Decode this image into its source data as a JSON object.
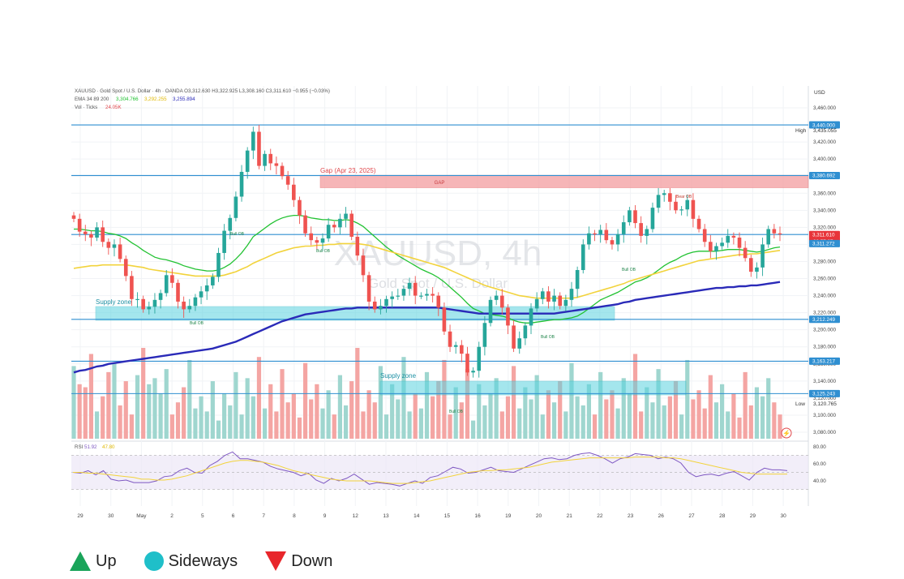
{
  "header": {
    "line1": "XAUUSD · Gold Spot / U.S. Dollar · 4h · OANDA  O3,312.630  H3,322.925  L3,308.160  C3,311.610  −0.955 (−0.03%)",
    "ema_label": "EMA 34 89 200",
    "ema34": "3,304.766",
    "ema89": "3,292.255",
    "ema200": "3,255.894",
    "vol_label": "Vol · Ticks",
    "vol_value": "24.05K",
    "rsi_label": "RSI",
    "rsi_value": "51.92",
    "rsi_ma": "47.80"
  },
  "watermark": {
    "symbol": "XAUUSD, 4h",
    "name": "Gold Spot / U.S. Dollar"
  },
  "currency": "USD",
  "colors": {
    "up": "#26a69a",
    "down": "#ef5350",
    "ema34": "#22c232",
    "ema89": "#f2d33c",
    "ema200": "#2a2ab8",
    "level": "#2f8fd1",
    "zone": "#5ad3e0",
    "gap": "#f49da0",
    "rsi": "#7e57c2"
  },
  "labels": {
    "gap_title": "Gap (Apr 23, 2025)",
    "gap_box": "GAP",
    "supply_zone_1": "Supply zone",
    "supply_zone_2": "Supply zone",
    "bear_ob": "Bear OB",
    "bull_ob": "Bull OB",
    "high_label": "High",
    "high_value": "3,435.055",
    "low_label": "Low",
    "low_value": "3,120.765",
    "countdown": "02:57:37"
  },
  "price_tags": [
    {
      "text": "3,440.000",
      "price": 3440.0
    },
    {
      "text": "3,380.692",
      "price": 3380.692
    },
    {
      "text": "3,311.610",
      "price": 3311.61
    },
    {
      "text": "3,311.272",
      "price": 3301.0
    },
    {
      "text": "3,212.249",
      "price": 3212.249
    },
    {
      "text": "3,163.217",
      "price": 3163.217
    },
    {
      "text": "3,125.243",
      "price": 3125.243
    }
  ],
  "legend": [
    {
      "label": "Up",
      "shape": "triangle-up"
    },
    {
      "label": "Sideways",
      "shape": "circle"
    },
    {
      "label": "Down",
      "shape": "triangle-down"
    }
  ],
  "chart_data": {
    "type": "line",
    "title": "XAUUSD · Gold Spot / U.S. Dollar · 4h · OANDA",
    "y_axis": {
      "min": 3080,
      "max": 3460,
      "step": 20,
      "ticks": [
        "3,460.000",
        "3,440.000",
        "3,420.000",
        "3,400.000",
        "3,380.000",
        "3,360.000",
        "3,340.000",
        "3,320.000",
        "3,300.000",
        "3,280.000",
        "3,260.000",
        "3,240.000",
        "3,220.000",
        "3,200.000",
        "3,180.000",
        "3,160.000",
        "3,140.000",
        "3,120.000",
        "3,100.000",
        "3,080.000"
      ]
    },
    "x_labels": [
      "29",
      "30",
      "May",
      "2",
      "5",
      "6",
      "7",
      "8",
      "9",
      "12",
      "13",
      "14",
      "15",
      "16",
      "19",
      "20",
      "21",
      "22",
      "23",
      "26",
      "27",
      "28",
      "29",
      "30"
    ],
    "levels": [
      3440.0,
      3380.692,
      3311.61,
      3212.249,
      3163.217,
      3125.243
    ],
    "gap_zone": [
      3374,
      3381
    ],
    "close": [
      3330,
      3315,
      3312,
      3308,
      3320,
      3303,
      3296,
      3300,
      3283,
      3263,
      3236,
      3236,
      3224,
      3227,
      3235,
      3243,
      3264,
      3255,
      3233,
      3224,
      3228,
      3238,
      3245,
      3252,
      3262,
      3290,
      3316,
      3331,
      3356,
      3385,
      3410,
      3432,
      3392,
      3406,
      3395,
      3392,
      3380,
      3370,
      3352,
      3334,
      3313,
      3305,
      3302,
      3307,
      3323,
      3320,
      3330,
      3336,
      3309,
      3287,
      3264,
      3233,
      3224,
      3228,
      3236,
      3239,
      3240,
      3248,
      3255,
      3240,
      3240,
      3242,
      3240,
      3226,
      3198,
      3180,
      3182,
      3172,
      3150,
      3152,
      3180,
      3208,
      3235,
      3240,
      3226,
      3205,
      3178,
      3190,
      3205,
      3225,
      3236,
      3245,
      3233,
      3240,
      3228,
      3235,
      3248,
      3270,
      3300,
      3313,
      3312,
      3317,
      3305,
      3300,
      3312,
      3326,
      3340,
      3325,
      3310,
      3318,
      3343,
      3358,
      3360,
      3350,
      3340,
      3341,
      3352,
      3330,
      3318,
      3303,
      3292,
      3298,
      3302,
      3310,
      3308,
      3296,
      3284,
      3268,
      3273,
      3300,
      3318,
      3313,
      3312
    ],
    "series": [
      {
        "name": "EMA 34",
        "values": [
          3318,
          3318,
          3317,
          3316,
          3316,
          3315,
          3313,
          3312,
          3310,
          3307,
          3302,
          3298,
          3293,
          3289,
          3285,
          3283,
          3282,
          3280,
          3278,
          3275,
          3273,
          3271,
          3270,
          3269,
          3269,
          3270,
          3273,
          3277,
          3283,
          3290,
          3299,
          3309,
          3314,
          3319,
          3324,
          3328,
          3331,
          3333,
          3334,
          3334,
          3333,
          3331,
          3330,
          3329,
          3329,
          3328,
          3328,
          3329,
          3328,
          3325,
          3321,
          3315,
          3309,
          3303,
          3297,
          3292,
          3287,
          3283,
          3279,
          3275,
          3271,
          3268,
          3265,
          3261,
          3256,
          3250,
          3244,
          3238,
          3231,
          3225,
          3222,
          3219,
          3218,
          3217,
          3216,
          3214,
          3211,
          3209,
          3208,
          3208,
          3209,
          3210,
          3211,
          3212,
          3212,
          3213,
          3214,
          3216,
          3220,
          3225,
          3230,
          3235,
          3238,
          3241,
          3244,
          3248,
          3252,
          3256,
          3258,
          3261,
          3265,
          3270,
          3275,
          3279,
          3282,
          3286,
          3289,
          3291,
          3292,
          3292,
          3292,
          3292,
          3293,
          3294,
          3294,
          3294,
          3293,
          3292,
          3291,
          3292,
          3294,
          3296,
          3297
        ]
      },
      {
        "name": "EMA 89",
        "values": [
          3272,
          3273,
          3274,
          3275,
          3275,
          3276,
          3276,
          3276,
          3276,
          3276,
          3275,
          3274,
          3273,
          3271,
          3270,
          3269,
          3268,
          3267,
          3266,
          3265,
          3264,
          3263,
          3263,
          3263,
          3263,
          3263,
          3264,
          3266,
          3268,
          3271,
          3274,
          3278,
          3281,
          3284,
          3287,
          3290,
          3292,
          3294,
          3296,
          3297,
          3298,
          3298,
          3299,
          3299,
          3300,
          3300,
          3301,
          3301,
          3301,
          3301,
          3300,
          3299,
          3297,
          3295,
          3293,
          3291,
          3289,
          3287,
          3285,
          3283,
          3281,
          3279,
          3277,
          3275,
          3273,
          3270,
          3267,
          3264,
          3261,
          3258,
          3255,
          3252,
          3250,
          3248,
          3246,
          3244,
          3242,
          3240,
          3239,
          3238,
          3237,
          3237,
          3237,
          3237,
          3237,
          3237,
          3237,
          3238,
          3240,
          3242,
          3244,
          3246,
          3248,
          3250,
          3252,
          3254,
          3257,
          3259,
          3261,
          3263,
          3265,
          3267,
          3269,
          3271,
          3273,
          3275,
          3277,
          3279,
          3281,
          3282,
          3283,
          3284,
          3285,
          3286,
          3287,
          3288,
          3288,
          3289,
          3289,
          3290,
          3291,
          3292,
          3293
        ]
      },
      {
        "name": "EMA 200",
        "values": [
          3150,
          3152,
          3153,
          3155,
          3157,
          3158,
          3160,
          3161,
          3162,
          3163,
          3164,
          3165,
          3166,
          3167,
          3168,
          3169,
          3170,
          3171,
          3172,
          3173,
          3174,
          3175,
          3176,
          3177,
          3178,
          3180,
          3182,
          3184,
          3186,
          3189,
          3192,
          3195,
          3198,
          3201,
          3204,
          3207,
          3210,
          3212,
          3214,
          3216,
          3218,
          3219,
          3220,
          3221,
          3222,
          3223,
          3224,
          3225,
          3225,
          3226,
          3226,
          3226,
          3226,
          3226,
          3226,
          3226,
          3226,
          3226,
          3226,
          3226,
          3226,
          3226,
          3226,
          3226,
          3225,
          3224,
          3223,
          3222,
          3221,
          3220,
          3219,
          3219,
          3219,
          3219,
          3219,
          3219,
          3219,
          3219,
          3219,
          3219,
          3219,
          3219,
          3219,
          3219,
          3220,
          3221,
          3222,
          3223,
          3224,
          3225,
          3226,
          3227,
          3228,
          3229,
          3230,
          3232,
          3233,
          3235,
          3236,
          3237,
          3238,
          3239,
          3240,
          3241,
          3242,
          3243,
          3244,
          3245,
          3246,
          3247,
          3248,
          3249,
          3249,
          3250,
          3250,
          3251,
          3251,
          3252,
          3252,
          3253,
          3254,
          3255,
          3256
        ]
      }
    ],
    "volume": [
      24,
      18,
      17,
      28,
      9,
      14,
      22,
      25,
      11,
      19,
      8,
      21,
      30,
      18,
      20,
      15,
      23,
      8,
      12,
      17,
      26,
      10,
      14,
      9,
      19,
      6,
      15,
      11,
      22,
      8,
      20,
      14,
      27,
      10,
      18,
      9,
      23,
      12,
      15,
      7,
      25,
      13,
      18,
      10,
      16,
      8,
      21,
      11,
      19,
      30,
      9,
      16,
      12,
      24,
      8,
      18,
      13,
      27,
      9,
      15,
      10,
      22,
      14,
      19,
      26,
      8,
      17,
      12,
      23,
      6,
      18,
      11,
      15,
      20,
      9,
      14,
      24,
      10,
      17,
      13,
      21,
      8,
      16,
      12,
      19,
      9,
      25,
      14,
      11,
      18,
      8,
      22,
      13,
      16,
      10,
      20,
      15,
      28,
      9,
      17,
      12,
      23,
      11,
      14,
      19,
      8,
      26,
      13,
      16,
      10,
      21,
      12,
      18,
      9,
      15,
      7,
      22,
      11,
      17,
      14,
      20,
      12,
      8
    ],
    "rsi": [
      50,
      49,
      52,
      47,
      52,
      42,
      40,
      41,
      38,
      38,
      38,
      40,
      45,
      46,
      52,
      55,
      50,
      49,
      58,
      63,
      70,
      74,
      66,
      66,
      64,
      62,
      57,
      54,
      52,
      50,
      46,
      49,
      41,
      37,
      43,
      40,
      43,
      48,
      42,
      36,
      38,
      37,
      36,
      34,
      37,
      40,
      37,
      44,
      46,
      51,
      56,
      54,
      49,
      50,
      53,
      56,
      52,
      51,
      50,
      54,
      58,
      62,
      66,
      67,
      65,
      66,
      70,
      72,
      73,
      70,
      66,
      61,
      66,
      68,
      72,
      71,
      70,
      66,
      68,
      66,
      61,
      50,
      45,
      47,
      48,
      46,
      49,
      51,
      46,
      41,
      50,
      55,
      53,
      53,
      52
    ],
    "rsi_ma": [
      50,
      50,
      49,
      49,
      48,
      47,
      46,
      45,
      44,
      42,
      42,
      41,
      41,
      42,
      44,
      46,
      49,
      52,
      55,
      58,
      61,
      63,
      64,
      64,
      63,
      62,
      60,
      58,
      55,
      52,
      50,
      48,
      46,
      44,
      42,
      41,
      40,
      40,
      40,
      40,
      39,
      38,
      37,
      37,
      37,
      38,
      39,
      40,
      42,
      44,
      46,
      48,
      50,
      51,
      52,
      52,
      53,
      53,
      54,
      55,
      56,
      58,
      60,
      62,
      63,
      64,
      65,
      66,
      67,
      67,
      67,
      67,
      67,
      67,
      68,
      68,
      68,
      68,
      67,
      67,
      66,
      64,
      62,
      60,
      58,
      56,
      54,
      52,
      50,
      49,
      48,
      48,
      48,
      48,
      48
    ],
    "rsi_axis": {
      "min": 20,
      "max": 80,
      "ticks": [
        "80.00",
        "60.00",
        "40.00"
      ]
    }
  }
}
